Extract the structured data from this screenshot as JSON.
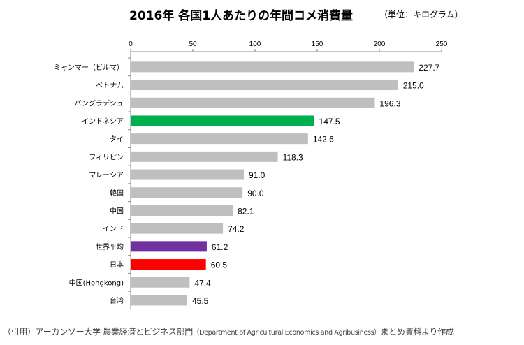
{
  "chart_data": {
    "type": "bar",
    "orientation": "horizontal",
    "title": "2016年 各国1人あたりの年間コメ消費量",
    "unit_note": "（単位：キログラム）",
    "xlim": [
      0,
      250
    ],
    "xticks": [
      0,
      50,
      100,
      150,
      200,
      250
    ],
    "axis_position": "top",
    "grid": false,
    "categories": [
      "ミャンマー（ビルマ）",
      "ベトナム",
      "バングラデシュ",
      "インドネシア",
      "タイ",
      "フィリピン",
      "マレーシア",
      "韓国",
      "中国",
      "インド",
      "世界平均",
      "日本",
      "中国(Hongkong)",
      "台湾"
    ],
    "values": [
      227.7,
      215.0,
      196.3,
      147.5,
      142.6,
      118.3,
      91.0,
      90.0,
      82.1,
      74.2,
      61.2,
      60.5,
      47.4,
      45.5
    ],
    "value_labels": [
      "227.7",
      "215.0",
      "196.3",
      "147.5",
      "142.6",
      "118.3",
      "91.0",
      "90.0",
      "82.1",
      "74.2",
      "61.2",
      "60.5",
      "47.4",
      "45.5"
    ],
    "colors": {
      "default": "#bfbfbf",
      "インドネシア": "#00b050",
      "世界平均": "#7030a0",
      "日本": "#ff0000"
    }
  },
  "source": {
    "prefix": "（引用）アーカンソー大学 農業経済とビジネス部門",
    "department": "（Department of Agricultural Economics and Agribusiness）",
    "suffix": "まとめ資料より作成"
  }
}
